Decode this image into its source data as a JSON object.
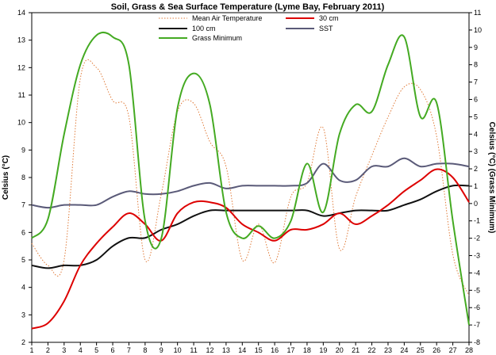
{
  "chart_data": {
    "type": "line",
    "title": "Soil, Grass & Sea Surface Temperature (Lyme Bay, February 2011)",
    "xlabel": "",
    "ylabel": "Celsius (°C)",
    "y2label": "Celsius (°C) (Grass Minimum)",
    "x": [
      1,
      2,
      3,
      4,
      5,
      6,
      7,
      8,
      9,
      10,
      11,
      12,
      13,
      14,
      15,
      16,
      17,
      18,
      19,
      20,
      21,
      22,
      23,
      24,
      25,
      26,
      27,
      28
    ],
    "xlim": [
      1,
      28
    ],
    "ylim": [
      2,
      14
    ],
    "y2lim": [
      -8,
      11
    ],
    "yticks": [
      "2",
      "3",
      "4",
      "5",
      "6",
      "7",
      "8",
      "9",
      "10",
      "11",
      "12",
      "13",
      "14"
    ],
    "y2ticks": [
      "-8",
      "-7",
      "-6",
      "-5",
      "-4",
      "-3",
      "-2",
      "-1",
      "0",
      "1",
      "2",
      "3",
      "4",
      "5",
      "6",
      "7",
      "8",
      "9",
      "10",
      "11"
    ],
    "grid": false,
    "legend_position": "top",
    "series": [
      {
        "name": "Mean Air Temperature",
        "axis": "left",
        "color": "#e07b39",
        "style": "dotted",
        "values": [
          5.6,
          4.8,
          5.0,
          11.6,
          12.0,
          10.8,
          10.2,
          5.0,
          7.4,
          10.4,
          10.7,
          9.3,
          8.4,
          5.0,
          6.3,
          4.9,
          7.3,
          7.8,
          9.8,
          5.4,
          7.3,
          8.8,
          10.2,
          11.3,
          11.2,
          9.5,
          5.2,
          3.7
        ]
      },
      {
        "name": "30 cm",
        "axis": "left",
        "color": "#dd0000",
        "style": "solid",
        "values": [
          2.5,
          2.7,
          3.5,
          4.8,
          5.6,
          6.2,
          6.7,
          6.3,
          5.7,
          6.7,
          7.1,
          7.1,
          6.9,
          6.3,
          6.0,
          5.7,
          6.1,
          6.1,
          6.3,
          6.7,
          6.3,
          6.6,
          7.0,
          7.5,
          7.9,
          8.3,
          8.0,
          7.1
        ]
      },
      {
        "name": "100 cm",
        "axis": "left",
        "color": "#111111",
        "style": "solid",
        "values": [
          4.8,
          4.7,
          4.8,
          4.8,
          5.0,
          5.5,
          5.8,
          5.8,
          6.1,
          6.3,
          6.6,
          6.8,
          6.8,
          6.8,
          6.8,
          6.8,
          6.8,
          6.8,
          6.6,
          6.7,
          6.8,
          6.8,
          6.8,
          7.0,
          7.2,
          7.5,
          7.7,
          7.7
        ]
      },
      {
        "name": "SST",
        "axis": "left",
        "color": "#5a5a78",
        "style": "solid",
        "values": [
          7.0,
          6.9,
          7.0,
          7.0,
          7.0,
          7.3,
          7.5,
          7.4,
          7.4,
          7.5,
          7.7,
          7.8,
          7.6,
          7.7,
          7.7,
          7.7,
          7.7,
          7.8,
          8.5,
          7.9,
          7.9,
          8.4,
          8.4,
          8.7,
          8.4,
          8.5,
          8.5,
          8.4
        ]
      },
      {
        "name": "Grass Minimum",
        "axis": "right",
        "color": "#44aa22",
        "style": "solid",
        "values": [
          -2.0,
          -0.9,
          4.0,
          8.0,
          9.7,
          9.6,
          8.0,
          -1.0,
          -2.0,
          5.5,
          7.5,
          5.7,
          -0.5,
          -2.0,
          -1.3,
          -2.0,
          -1.0,
          2.3,
          -0.5,
          4.0,
          5.7,
          5.3,
          8.0,
          9.6,
          5.0,
          5.8,
          -1.0,
          -7.0
        ]
      }
    ]
  }
}
